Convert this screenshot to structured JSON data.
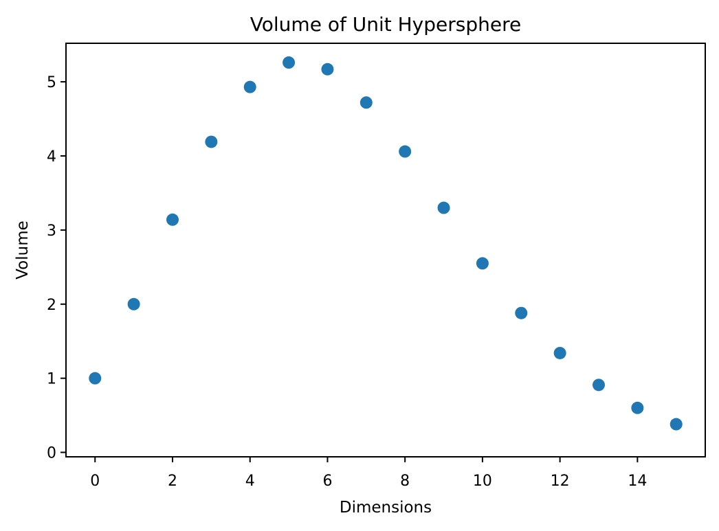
{
  "chart_data": {
    "type": "scatter",
    "title": "Volume of Unit Hypersphere",
    "xlabel": "Dimensions",
    "ylabel": "Volume",
    "xlim": [
      -0.75,
      15.75
    ],
    "ylim": [
      -0.06,
      5.52
    ],
    "xticks": [
      0,
      2,
      4,
      6,
      8,
      10,
      12,
      14
    ],
    "yticks": [
      0,
      1,
      2,
      3,
      4,
      5
    ],
    "grid": false,
    "series": [
      {
        "color": "#1f77b4",
        "x": [
          0,
          1,
          2,
          3,
          4,
          5,
          6,
          7,
          8,
          9,
          10,
          11,
          12,
          13,
          14,
          15
        ],
        "y": [
          1.0,
          2.0,
          3.14,
          4.19,
          4.93,
          5.26,
          5.17,
          4.72,
          4.06,
          3.3,
          2.55,
          1.88,
          1.34,
          0.91,
          0.6,
          0.38
        ]
      }
    ]
  }
}
